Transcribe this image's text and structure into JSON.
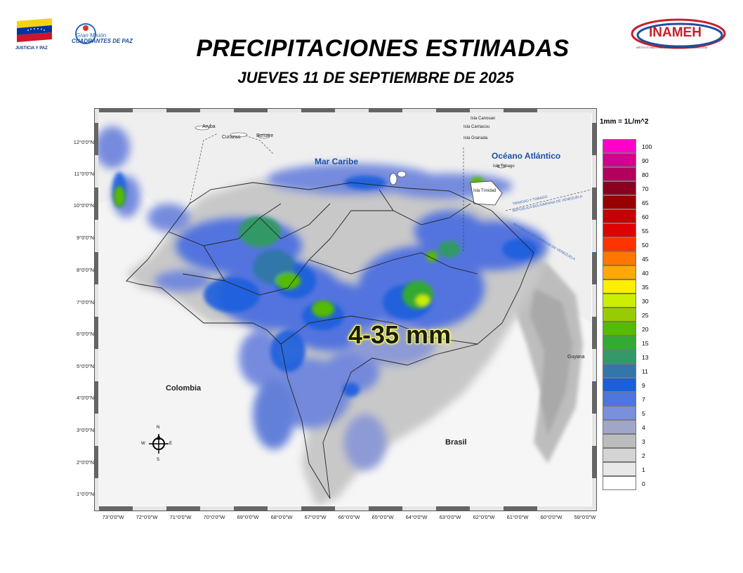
{
  "header": {
    "title": "PRECIPITACIONES ESTIMADAS",
    "subtitle": "JUEVES 11 DE SEPTIEMBRE DE 2025"
  },
  "logos": {
    "left_flag_caption": "JUSTICIA Y PAZ",
    "left_program_line1": "Gran Misión",
    "left_program_line2": "CUADRANTES DE PAZ",
    "right_logo_text": "INAMEH",
    "right_logo_caption": "INSTITUTO NACIONAL DE METEOROLOGÍA E HIDROLOGÍA"
  },
  "map": {
    "lat_labels": [
      "12°0'0\"N",
      "11°0'0\"N",
      "10°0'0\"N",
      "9°0'0\"N",
      "8°0'0\"N",
      "7°0'0\"N",
      "6°0'0\"N",
      "5°0'0\"N",
      "4°0'0\"N",
      "3°0'0\"N",
      "2°0'0\"N",
      "1°0'0\"N"
    ],
    "lon_labels": [
      "73°0'0\"W",
      "72°0'0\"W",
      "71°0'0\"W",
      "70°0'0\"W",
      "69°0'0\"W",
      "68°0'0\"W",
      "67°0'0\"W",
      "66°0'0\"W",
      "65°0'0\"W",
      "64°0'0\"W",
      "63°0'0\"W",
      "62°0'0\"W",
      "61°0'0\"W",
      "60°0'0\"W",
      "59°0'0\"W"
    ],
    "places": {
      "aruba": "Aruba",
      "curazao": "Curazao",
      "bonaire": "Bonaire",
      "mar_caribe": "Mar Caribe",
      "oceano": "Océano Atlántico",
      "canouan": "Isla Canouan",
      "carriacou": "Isla Carriacou",
      "granada": "Isla Granada",
      "tobago": "Isla Tobago",
      "trinidad": "Isla Trinidad",
      "tt_border": "TRINIDAD Y TOBAGO",
      "ve_border": "REPÚBLICA BOLIVARIANA DE VENEZUELA",
      "ve_border2": "REPÚBLICA BOLIVARIANA DE VENEZUELA",
      "colombia": "Colombia",
      "brasil": "Brasil",
      "guyana": "Guyana"
    },
    "compass": {
      "n": "N",
      "s": "S",
      "e": "E",
      "w": "W"
    },
    "range_annotation": "4-35 mm"
  },
  "legend": {
    "unit": "1mm = 1L/m^2",
    "items": [
      {
        "label": "100",
        "color": "#ff00cc"
      },
      {
        "label": "90",
        "color": "#d10090"
      },
      {
        "label": "80",
        "color": "#b3005e"
      },
      {
        "label": "70",
        "color": "#8a0020"
      },
      {
        "label": "65",
        "color": "#990000"
      },
      {
        "label": "60",
        "color": "#c40000"
      },
      {
        "label": "55",
        "color": "#e00000"
      },
      {
        "label": "50",
        "color": "#ff3300"
      },
      {
        "label": "45",
        "color": "#ff7700"
      },
      {
        "label": "40",
        "color": "#ffaa00"
      },
      {
        "label": "35",
        "color": "#ffee00"
      },
      {
        "label": "30",
        "color": "#ccee00"
      },
      {
        "label": "25",
        "color": "#99cc00"
      },
      {
        "label": "20",
        "color": "#55bb00"
      },
      {
        "label": "15",
        "color": "#33aa33"
      },
      {
        "label": "13",
        "color": "#339966"
      },
      {
        "label": "11",
        "color": "#3377aa"
      },
      {
        "label": "9",
        "color": "#1a5fdd"
      },
      {
        "label": "7",
        "color": "#4d75dd"
      },
      {
        "label": "5",
        "color": "#7a8fdd"
      },
      {
        "label": "4",
        "color": "#a0a6c8"
      },
      {
        "label": "3",
        "color": "#bcbcbc"
      },
      {
        "label": "2",
        "color": "#d4d4d4"
      },
      {
        "label": "1",
        "color": "#e8e8e8"
      },
      {
        "label": "0",
        "color": "#ffffff"
      }
    ]
  }
}
